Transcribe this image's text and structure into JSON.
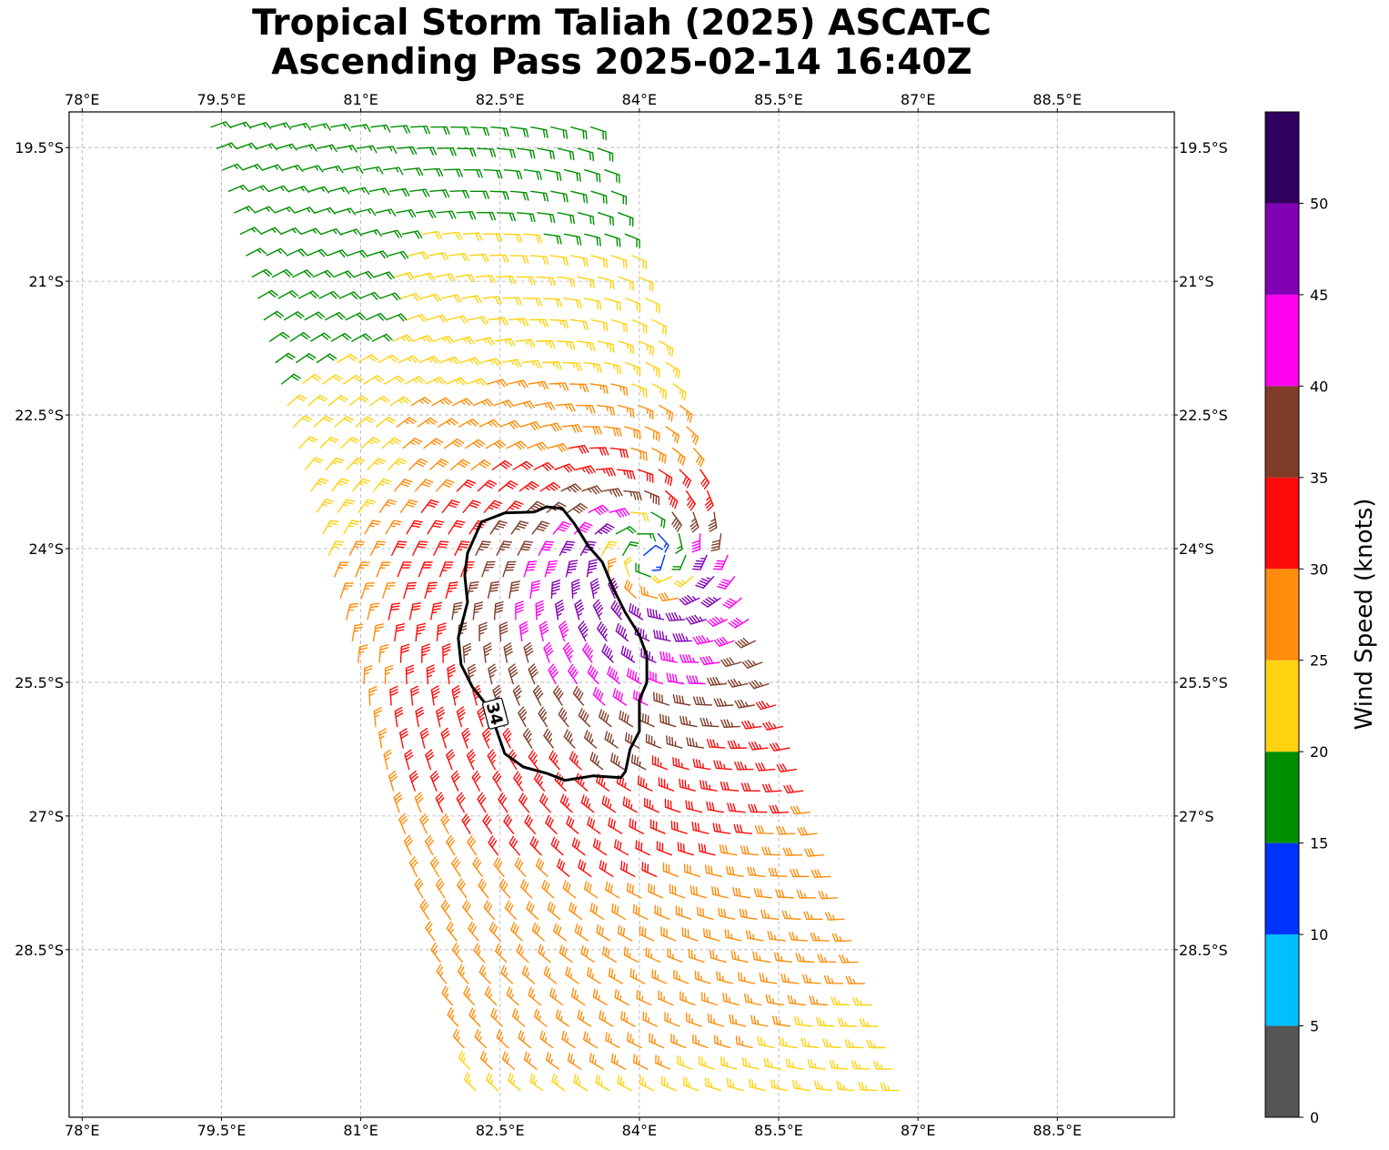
{
  "title": {
    "line1": "Tropical Storm Taliah (2025) ASCAT-C",
    "line2": "Ascending Pass 2025-02-14 16:40Z"
  },
  "map": {
    "lon_range": [
      77.86,
      89.76
    ],
    "lat_range": [
      -30.38,
      -19.1
    ],
    "lon_ticks": [
      {
        "value": 78.0,
        "label": "78°E"
      },
      {
        "value": 79.5,
        "label": "79.5°E"
      },
      {
        "value": 81.0,
        "label": "81°E"
      },
      {
        "value": 82.5,
        "label": "82.5°E"
      },
      {
        "value": 84.0,
        "label": "84°E"
      },
      {
        "value": 85.5,
        "label": "85.5°E"
      },
      {
        "value": 87.0,
        "label": "87°E"
      },
      {
        "value": 88.5,
        "label": "88.5°E"
      }
    ],
    "lat_ticks": [
      {
        "value": -19.5,
        "label": "19.5°S"
      },
      {
        "value": -21.0,
        "label": "21°S"
      },
      {
        "value": -22.5,
        "label": "22.5°S"
      },
      {
        "value": -24.0,
        "label": "24°S"
      },
      {
        "value": -25.5,
        "label": "25.5°S"
      },
      {
        "value": -27.0,
        "label": "27°S"
      },
      {
        "value": -28.5,
        "label": "28.5°S"
      }
    ],
    "storm_center": {
      "lon": 84.1,
      "lat": -24.1
    },
    "contour_label": "34",
    "contour_34kt": [
      [
        82.87,
        -23.59
      ],
      [
        83.0,
        -23.53
      ],
      [
        83.17,
        -23.55
      ],
      [
        83.3,
        -23.72
      ],
      [
        83.45,
        -23.97
      ],
      [
        83.6,
        -24.15
      ],
      [
        83.72,
        -24.45
      ],
      [
        83.85,
        -24.72
      ],
      [
        84.0,
        -24.97
      ],
      [
        84.08,
        -25.2
      ],
      [
        84.08,
        -25.5
      ],
      [
        84.0,
        -25.7
      ],
      [
        84.0,
        -26.05
      ],
      [
        83.9,
        -26.25
      ],
      [
        83.85,
        -26.5
      ],
      [
        83.8,
        -26.57
      ],
      [
        83.5,
        -26.55
      ],
      [
        83.2,
        -26.6
      ],
      [
        83.0,
        -26.52
      ],
      [
        82.75,
        -26.45
      ],
      [
        82.55,
        -26.3
      ],
      [
        82.45,
        -26.0
      ],
      [
        82.35,
        -25.75
      ],
      [
        82.2,
        -25.55
      ],
      [
        82.08,
        -25.3
      ],
      [
        82.05,
        -25.0
      ],
      [
        82.15,
        -24.6
      ],
      [
        82.12,
        -24.3
      ],
      [
        82.15,
        -24.05
      ],
      [
        82.3,
        -23.7
      ],
      [
        82.55,
        -23.6
      ],
      [
        82.87,
        -23.59
      ]
    ]
  },
  "wind_model": {
    "swath_corners": [
      [
        79.25,
        -19.15
      ],
      [
        83.55,
        -19.15
      ],
      [
        86.95,
        -30.2
      ],
      [
        82.15,
        -30.2
      ]
    ],
    "center": {
      "lon": 84.1,
      "lat": -24.1
    },
    "rows": 46,
    "cols": 20
  },
  "colorbar": {
    "label": "Wind Speed (knots)",
    "bins": [
      {
        "from": 0,
        "to": 5,
        "color": "#555555"
      },
      {
        "from": 5,
        "to": 10,
        "color": "#00bfff"
      },
      {
        "from": 10,
        "to": 15,
        "color": "#0033ff"
      },
      {
        "from": 15,
        "to": 20,
        "color": "#008f00"
      },
      {
        "from": 20,
        "to": 25,
        "color": "#ffd20f"
      },
      {
        "from": 25,
        "to": 30,
        "color": "#ff8c0a"
      },
      {
        "from": 30,
        "to": 35,
        "color": "#ff0a0a"
      },
      {
        "from": 35,
        "to": 40,
        "color": "#7f3c28"
      },
      {
        "from": 40,
        "to": 45,
        "color": "#ff00f0"
      },
      {
        "from": 45,
        "to": 50,
        "color": "#8200b4"
      },
      {
        "from": 50,
        "to": 55,
        "color": "#30005e"
      }
    ],
    "tick_labels": [
      "0",
      "5",
      "10",
      "15",
      "20",
      "25",
      "30",
      "35",
      "40",
      "45",
      "50"
    ]
  }
}
